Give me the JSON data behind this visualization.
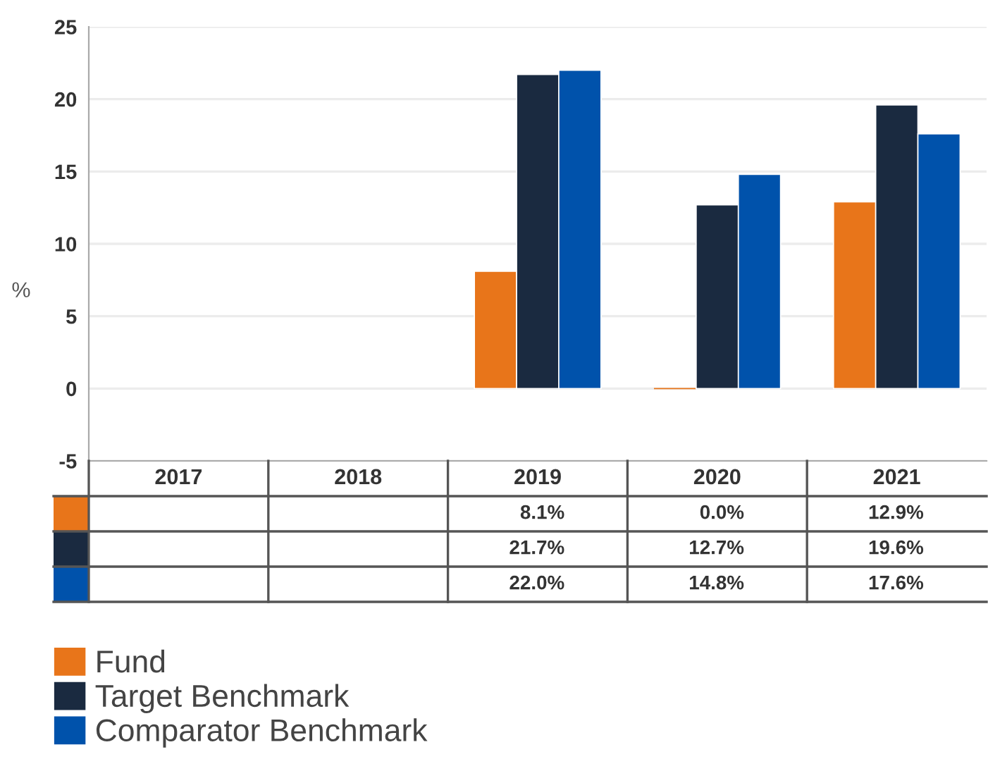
{
  "chart_data": {
    "type": "bar",
    "ylabel": "%",
    "categories": [
      "2017",
      "2018",
      "2019",
      "2020",
      "2021"
    ],
    "series": [
      {
        "name": "Fund",
        "color": "#e8751a",
        "values": [
          null,
          null,
          8.1,
          0.0,
          12.9
        ],
        "value_labels": [
          null,
          null,
          "8.1%",
          "0.0%",
          "12.9%"
        ]
      },
      {
        "name": "Target Benchmark",
        "color": "#1a2a40",
        "values": [
          null,
          null,
          21.7,
          12.7,
          19.6
        ],
        "value_labels": [
          null,
          null,
          "21.7%",
          "12.7%",
          "19.6%"
        ]
      },
      {
        "name": "Comparator Benchmark",
        "color": "#0052ab",
        "values": [
          null,
          null,
          22.0,
          14.8,
          17.6
        ],
        "value_labels": [
          null,
          null,
          "22.0%",
          "14.8%",
          "17.6%"
        ]
      }
    ],
    "ylim": [
      -5,
      25
    ],
    "yticks": [
      -5,
      0,
      5,
      10,
      15,
      20,
      25
    ],
    "grid": "y",
    "legend": "bottom"
  }
}
